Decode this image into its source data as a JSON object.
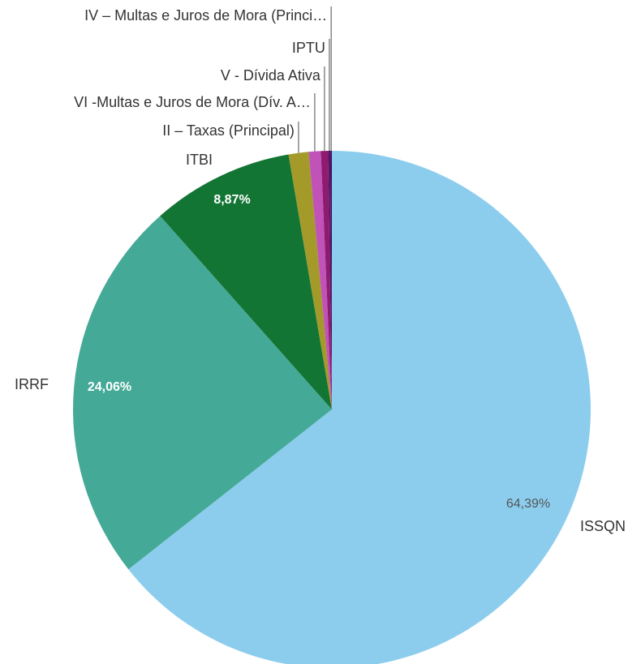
{
  "chart_data": {
    "type": "pie",
    "categories": [
      "ISSQN",
      "IRRF",
      "ITBI",
      "II – Taxas (Principal)",
      "VI -Multas e Juros de Mora (Dív. A…",
      "V - Dívida Ativa",
      "IPTU",
      "IV – Multas e Juros de Mora (Princi…"
    ],
    "values": [
      64.39,
      24.06,
      8.87,
      1.25,
      0.75,
      0.45,
      0.15,
      0.08
    ],
    "value_labels": [
      "64,39%",
      "24,06%",
      "8,87%",
      null,
      null,
      null,
      null,
      null
    ],
    "colors": [
      "#8ccdee",
      "#45a997",
      "#137534",
      "#a39a2a",
      "#c052b8",
      "#8e1b6f",
      "#5b1463",
      "#3a0e63"
    ]
  }
}
